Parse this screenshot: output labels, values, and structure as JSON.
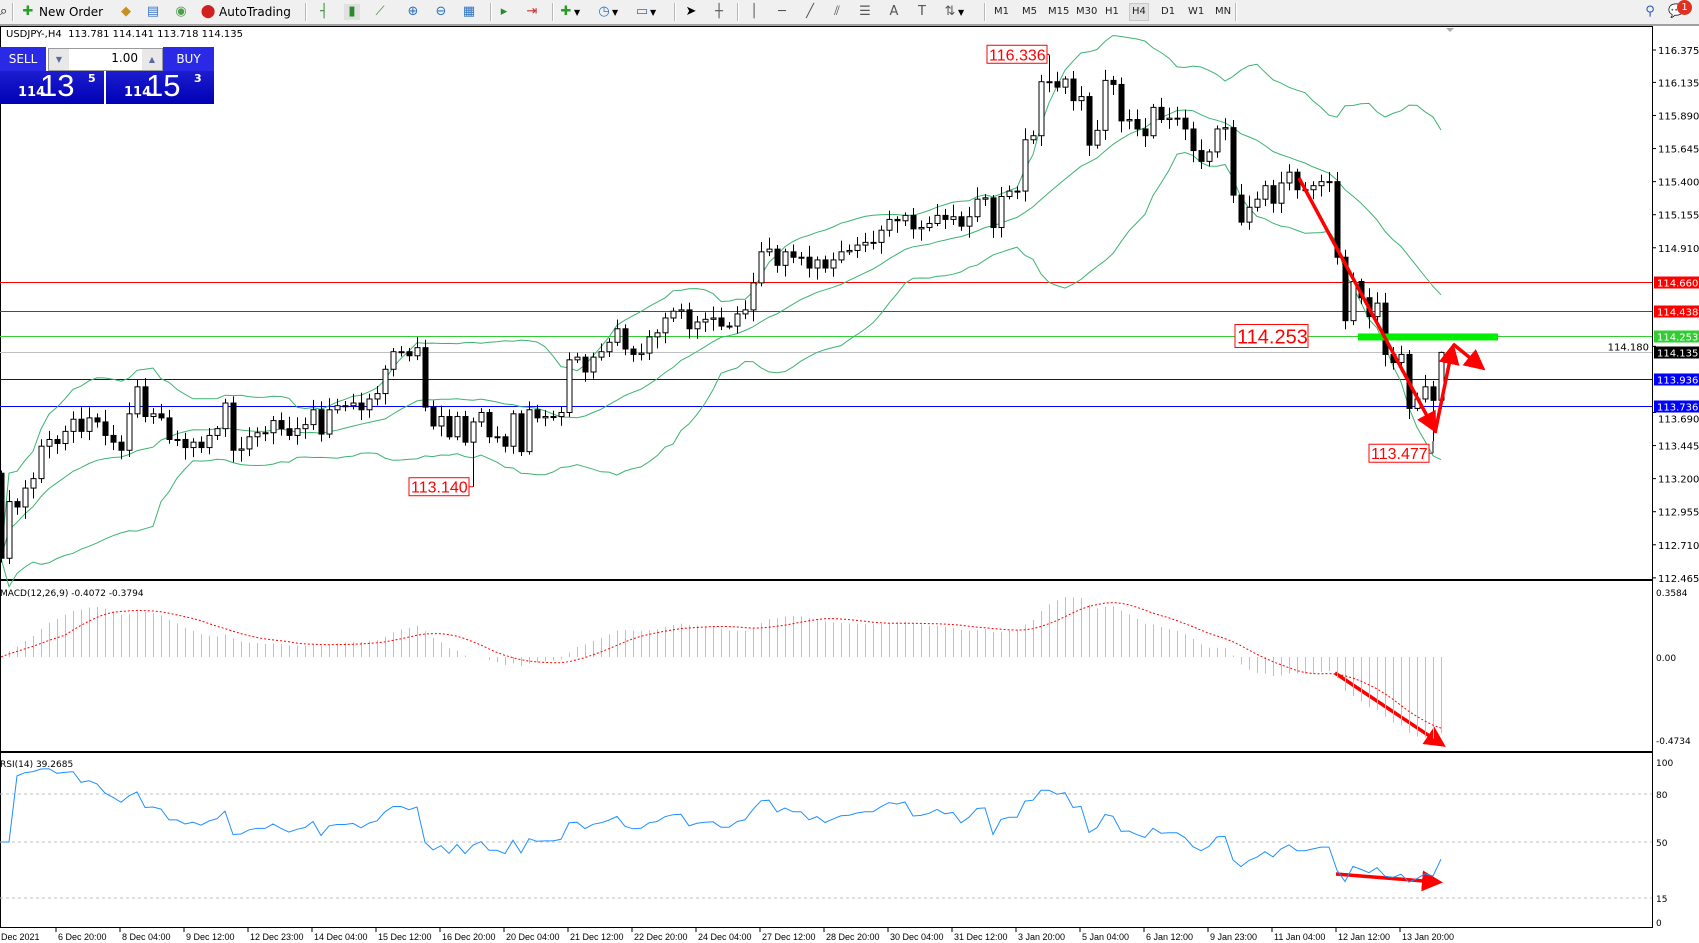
{
  "toolbar": {
    "new_order": "New Order",
    "autotrading": "AutoTrading",
    "timeframes": [
      "M1",
      "M5",
      "M15",
      "M30",
      "H1",
      "H4",
      "D1",
      "W1",
      "MN"
    ],
    "active_timeframe": "H4",
    "notification_count": "1"
  },
  "symbol_info": "USDJPY-,H4  113.781 114.141 113.718 114.135",
  "trade_panel": {
    "sell_label": "SELL",
    "buy_label": "BUY",
    "lot": "1.00",
    "sell_prefix": "114",
    "sell_big": "13",
    "sell_sup": "5",
    "buy_prefix": "114",
    "buy_big": "15",
    "buy_sup": "3"
  },
  "colors": {
    "bollinger": "#3cb371",
    "macd_hist": "#c0c0c0",
    "macd_signal": "#ff0000",
    "rsi": "#1e90ff",
    "annotation": "#ff0000",
    "support_zone": "#00ee00"
  },
  "chart_data": [
    {
      "type": "candlestick",
      "symbol": "USDJPY-",
      "timeframe": "H4",
      "first_open": 113.24,
      "current_bar": {
        "open": 113.781,
        "high": 114.141,
        "low": 113.718,
        "close": 114.135
      },
      "closes": [
        112.61,
        113.03,
        112.99,
        113.13,
        113.2,
        113.44,
        113.49,
        113.46,
        113.55,
        113.64,
        113.55,
        113.65,
        113.62,
        113.52,
        113.47,
        113.41,
        113.68,
        113.88,
        113.66,
        113.68,
        113.65,
        113.49,
        113.49,
        113.43,
        113.47,
        113.43,
        113.52,
        113.57,
        113.76,
        113.41,
        113.42,
        113.51,
        113.54,
        113.54,
        113.63,
        113.57,
        113.52,
        113.57,
        113.6,
        113.71,
        113.53,
        113.71,
        113.74,
        113.74,
        113.76,
        113.71,
        113.79,
        113.83,
        114.01,
        114.14,
        114.14,
        114.11,
        114.17,
        113.73,
        113.59,
        113.66,
        113.51,
        113.66,
        113.47,
        113.62,
        113.69,
        113.51,
        113.51,
        113.44,
        113.68,
        113.4,
        113.71,
        113.65,
        113.66,
        113.66,
        113.69,
        114.08,
        114.1,
        113.99,
        114.1,
        114.14,
        114.21,
        114.31,
        114.16,
        114.12,
        114.13,
        114.25,
        114.28,
        114.39,
        114.44,
        114.45,
        114.31,
        114.36,
        114.38,
        114.39,
        114.33,
        114.33,
        114.42,
        114.45,
        114.65,
        114.88,
        114.9,
        114.78,
        114.88,
        114.84,
        114.84,
        114.76,
        114.82,
        114.76,
        114.82,
        114.88,
        114.89,
        114.93,
        114.95,
        114.95,
        115.04,
        115.12,
        115.11,
        115.15,
        115.05,
        115.06,
        115.09,
        115.15,
        115.12,
        115.14,
        115.07,
        115.14,
        115.27,
        115.28,
        115.06,
        115.29,
        115.33,
        115.33,
        115.71,
        115.74,
        116.14,
        116.14,
        116.1,
        116.16,
        116.0,
        116.03,
        115.67,
        115.78,
        116.15,
        116.12,
        115.85,
        115.86,
        115.79,
        115.74,
        115.95,
        115.86,
        115.87,
        115.87,
        115.79,
        115.63,
        115.55,
        115.62,
        115.79,
        115.8,
        115.3,
        115.1,
        115.21,
        115.27,
        115.37,
        115.24,
        115.39,
        115.47,
        115.34,
        115.34,
        115.37,
        115.4,
        115.4,
        114.84,
        114.37,
        114.66,
        114.54,
        114.4,
        114.5,
        114.12,
        114.06,
        114.12,
        113.72,
        113.79,
        113.88,
        113.78,
        114.135
      ],
      "extremes": [
        {
          "bar": 131,
          "kind": "high",
          "value": 116.336,
          "label": "116.336"
        },
        {
          "bar": 59,
          "kind": "low",
          "value": 113.14,
          "label": "113.140"
        },
        {
          "bar": 179,
          "kind": "low",
          "value": 113.477,
          "label": "113.477"
        }
      ],
      "indicator": "Bollinger Bands",
      "y_ticks": [
        "116.375",
        "116.135",
        "115.890",
        "115.645",
        "115.400",
        "115.155",
        "114.910",
        "114.180",
        "113.690",
        "113.445",
        "113.200",
        "112.955",
        "112.710",
        "112.465"
      ],
      "ylim": [
        112.465,
        116.375
      ],
      "levels": [
        {
          "value": 114.66,
          "label": "114.660",
          "color": "#ff0000"
        },
        {
          "value": 114.438,
          "label": "114.438",
          "color": "#ff0000"
        },
        {
          "value": 114.253,
          "label": "114.253",
          "color": "#32cd32"
        },
        {
          "value": 114.135,
          "label": "114.135",
          "color": "#000000",
          "line": "#c0c0c0"
        },
        {
          "value": 113.936,
          "label": "113.936",
          "color": "#0000ff"
        },
        {
          "value": 113.736,
          "label": "113.736",
          "color": "#0000ff"
        }
      ],
      "big_label": "114.253",
      "x_labels": [
        "Dec 2021",
        "6 Dec 20:00",
        "8 Dec 04:00",
        "9 Dec 12:00",
        "12 Dec 23:00",
        "14 Dec 04:00",
        "15 Dec 12:00",
        "16 Dec 20:00",
        "20 Dec 04:00",
        "21 Dec 12:00",
        "22 Dec 20:00",
        "24 Dec 04:00",
        "27 Dec 12:00",
        "28 Dec 20:00",
        "30 Dec 04:00",
        "31 Dec 12:00",
        "3 Jan 20:00",
        "5 Jan 04:00",
        "6 Jan 12:00",
        "9 Jan 23:00",
        "11 Jan 04:00",
        "12 Jan 12:00",
        "13 Jan 20:00"
      ]
    },
    {
      "type": "bar",
      "title": "MACD(12,26,9) -0.4072 -0.3794",
      "params": [
        12,
        26,
        9
      ],
      "current": [
        -0.4072,
        -0.3794
      ],
      "y_ticks": [
        "0.3584",
        "0.00",
        "-0.4734"
      ],
      "ylim": [
        -0.4734,
        0.3584
      ]
    },
    {
      "type": "line",
      "title": "RSI(14) 39.2685",
      "period": 14,
      "current": 39.2685,
      "y_ticks": [
        "100",
        "80",
        "50",
        "15",
        "0"
      ],
      "levels": [
        80,
        50,
        15
      ],
      "ylim": [
        0,
        100
      ]
    }
  ]
}
